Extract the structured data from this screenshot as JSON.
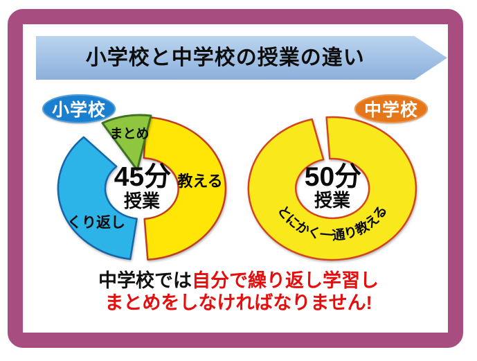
{
  "slide": {
    "title": "小学校と中学校の授業の違い",
    "caption": {
      "line1_black": "中学校では",
      "line1_red": "自分で繰り返し学習し",
      "line2_red": "まとめをしなければなりません!"
    },
    "colors": {
      "frame": "#a84d7f",
      "banner_top": "#bad4ef",
      "banner_bottom": "#8cb0dc",
      "caption_red": "#e60d0d",
      "elementary_badge": "#1b7fd0",
      "junior_high_badge": "#e5761a"
    }
  },
  "chart_data": [
    {
      "type": "donut",
      "title_badge": "小学校",
      "badge_color": "#1b7fd0",
      "center_line1": "45分",
      "center_line2": "授業",
      "legend_position": "labels-on-slices",
      "segments": [
        {
          "label": "教える",
          "share_pct": 48,
          "start_deg": 3,
          "end_deg": 176,
          "color": "#ffe606",
          "stroke": "#c23c20"
        },
        {
          "label": "くり返し",
          "share_pct": 36,
          "start_deg": 188,
          "end_deg": 316,
          "color": "#2cb3e8",
          "stroke": "#1565a8"
        },
        {
          "label": "まとめ",
          "share_pct": 10,
          "start_deg": 332,
          "end_deg": 368,
          "color": "#8ec63f",
          "stroke": "#3f7323",
          "shape": "wedge",
          "exploded": true
        }
      ]
    },
    {
      "type": "donut",
      "title_badge": "中学校",
      "badge_color": "#e5761a",
      "center_line1": "50分",
      "center_line2": "授業",
      "legend_position": "label-on-arc",
      "segments": [
        {
          "label": "とにかく一通り教える",
          "share_pct": 97,
          "start_deg": 356,
          "end_deg": 346,
          "color": "#f8e81c",
          "stroke": "#d24420",
          "label_on_arc": true
        }
      ]
    }
  ]
}
